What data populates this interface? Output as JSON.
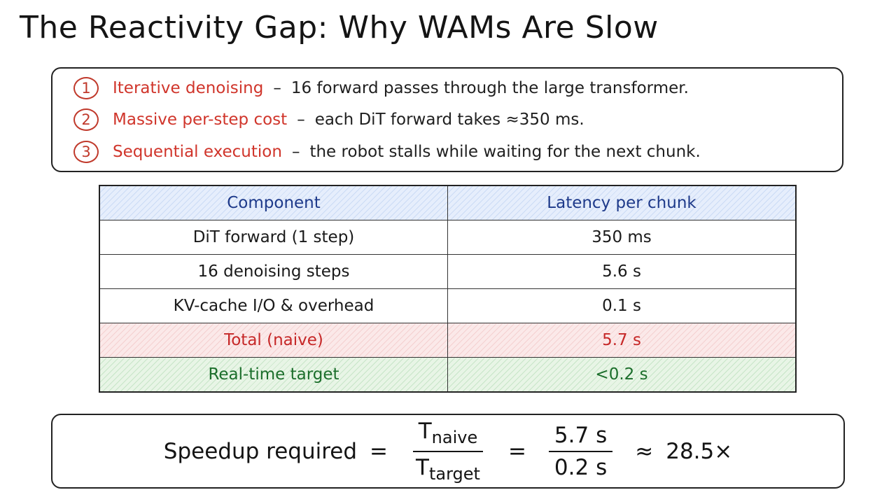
{
  "title": "The Reactivity Gap: Why WAMs Are Slow",
  "points": [
    {
      "num": "1",
      "title": "Iterative denoising",
      "sep": "–",
      "desc": "16 forward passes through the large transformer."
    },
    {
      "num": "2",
      "title": "Massive per-step cost",
      "sep": "–",
      "desc": "each DiT forward takes ≈350 ms."
    },
    {
      "num": "3",
      "title": "Sequential execution",
      "sep": "–",
      "desc": "the robot stalls while waiting for the next chunk."
    }
  ],
  "table": {
    "headers": [
      "Component",
      "Latency per chunk"
    ],
    "rows": [
      [
        "DiT forward (1 step)",
        "350 ms"
      ],
      [
        "16 denoising steps",
        "5.6 s"
      ],
      [
        "KV-cache I/O & overhead",
        "0.1 s"
      ],
      [
        "Total (naive)",
        "5.7 s"
      ],
      [
        "Real-time target",
        "<0.2 s"
      ]
    ]
  },
  "formula": {
    "label": "Speedup required",
    "eq1": "=",
    "t1_base": "T",
    "t1_sub": "naive",
    "t2_base": "T",
    "t2_sub": "target",
    "eq2": "=",
    "num": "5.7 s",
    "den": "0.2 s",
    "approx": "≈",
    "result": "28.5×"
  },
  "colors": {
    "accent_red": "#d0352b",
    "header_blue": "#1e3a8a",
    "target_green": "#1b6e2b"
  }
}
